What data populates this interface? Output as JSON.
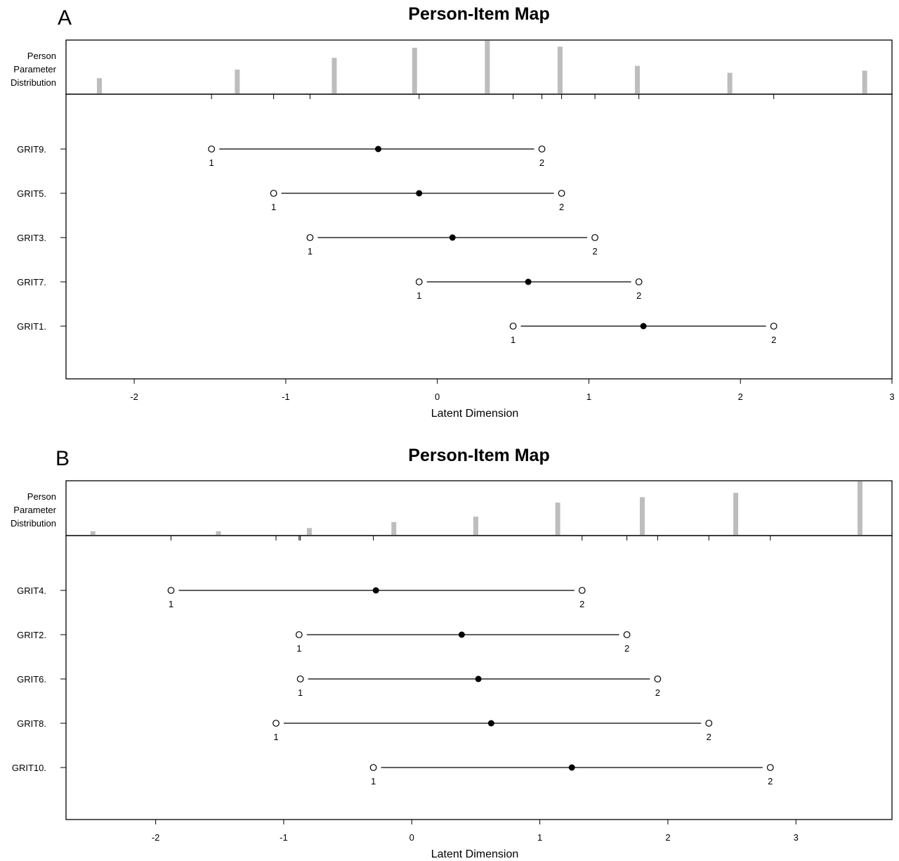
{
  "chart_data": [
    {
      "type": "person-item map",
      "panel": "A",
      "title": "Person-Item Map",
      "xlabel": "Latent Dimension",
      "dist_label": [
        "Person",
        "Parameter",
        "Distribution"
      ],
      "xlim": [
        -2.45,
        3.0
      ],
      "xticks": [
        -2,
        -1,
        0,
        1,
        2,
        3
      ],
      "person_distribution": [
        {
          "x": -2.23,
          "freq": 0.3
        },
        {
          "x": -1.32,
          "freq": 0.46
        },
        {
          "x": -0.68,
          "freq": 0.68
        },
        {
          "x": -0.15,
          "freq": 0.87
        },
        {
          "x": 0.33,
          "freq": 1.0
        },
        {
          "x": 0.81,
          "freq": 0.89
        },
        {
          "x": 1.32,
          "freq": 0.53
        },
        {
          "x": 1.93,
          "freq": 0.4
        },
        {
          "x": 2.82,
          "freq": 0.44
        }
      ],
      "items": [
        {
          "label": "GRIT9.",
          "t1": -1.49,
          "loc": -0.39,
          "t2": 0.69
        },
        {
          "label": "GRIT5.",
          "t1": -1.08,
          "loc": -0.12,
          "t2": 0.82
        },
        {
          "label": "GRIT3.",
          "t1": -0.84,
          "loc": 0.1,
          "t2": 1.04
        },
        {
          "label": "GRIT7.",
          "t1": -0.12,
          "loc": 0.6,
          "t2": 1.33
        },
        {
          "label": "GRIT1.",
          "t1": 0.5,
          "loc": 1.36,
          "t2": 2.22
        }
      ],
      "threshold_labels": [
        "1",
        "2"
      ]
    },
    {
      "type": "person-item map",
      "panel": "B",
      "title": "Person-Item Map",
      "xlabel": "Latent Dimension",
      "dist_label": [
        "Person",
        "Parameter",
        "Distribution"
      ],
      "xlim": [
        -2.7,
        3.75
      ],
      "xticks": [
        -2,
        -1,
        0,
        1,
        2,
        3
      ],
      "person_distribution": [
        {
          "x": -2.49,
          "freq": 0.08
        },
        {
          "x": -1.51,
          "freq": 0.08
        },
        {
          "x": -0.8,
          "freq": 0.14
        },
        {
          "x": -0.14,
          "freq": 0.25
        },
        {
          "x": 0.5,
          "freq": 0.35
        },
        {
          "x": 1.14,
          "freq": 0.61
        },
        {
          "x": 1.8,
          "freq": 0.71
        },
        {
          "x": 2.53,
          "freq": 0.79
        },
        {
          "x": 3.5,
          "freq": 1.0
        }
      ],
      "items": [
        {
          "label": "GRIT4.",
          "t1": -1.88,
          "loc": -0.28,
          "t2": 1.33
        },
        {
          "label": "GRIT2.",
          "t1": -0.88,
          "loc": 0.39,
          "t2": 1.68
        },
        {
          "label": "GRIT6.",
          "t1": -0.87,
          "loc": 0.52,
          "t2": 1.92
        },
        {
          "label": "GRIT8.",
          "t1": -1.06,
          "loc": 0.62,
          "t2": 2.32
        },
        {
          "label": "GRIT10.",
          "t1": -0.3,
          "loc": 1.25,
          "t2": 2.8
        }
      ],
      "threshold_labels": [
        "1",
        "2"
      ]
    }
  ]
}
